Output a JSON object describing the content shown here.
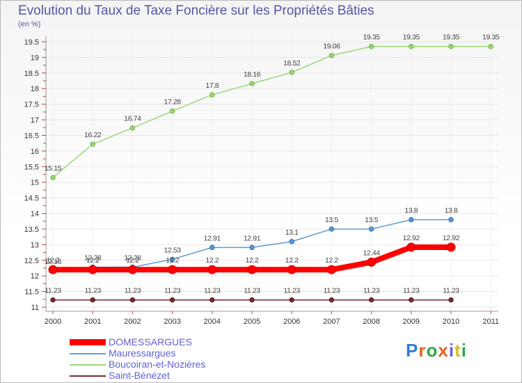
{
  "title": "Evolution du Taux de Taxe Foncière sur les Propriétés Bâties",
  "unit_label": "(en %)",
  "brand": {
    "letters": [
      "P",
      "r",
      "o",
      "x",
      "i",
      "t",
      "i"
    ],
    "colors": [
      "#2f7fd6",
      "#e8621e",
      "#2fa64a",
      "#e8621e",
      "#7a5bd0",
      "#c9c21e",
      "#2fa64a"
    ]
  },
  "chart_data": {
    "type": "line",
    "title": "Evolution du Taux de Taxe Foncière sur les Propriétés Bâties",
    "ylabel": "(en %)",
    "xlabel": "",
    "x_ticks": [
      "2000",
      "2001",
      "2002",
      "2003",
      "2004",
      "2005",
      "2006",
      "2007",
      "2008",
      "2009",
      "2010",
      "2011"
    ],
    "y_ticks": [
      "11",
      "11.5",
      "12",
      "12.5",
      "13",
      "13.5",
      "14",
      "14.5",
      "15",
      "15.5",
      "16",
      "16.5",
      "17",
      "17.5",
      "18",
      "18.5",
      "19",
      "19.5"
    ],
    "ylim": [
      11,
      19.5
    ],
    "series": [
      {
        "name": "DOMESSARGUES",
        "color": "#ff0000",
        "values": [
          12.2,
          12.2,
          12.2,
          12.2,
          12.2,
          12.2,
          12.2,
          12.2,
          12.44,
          12.92,
          12.92
        ],
        "labels": [
          "12.2",
          "",
          "",
          "12.2",
          "12.2",
          "12.2",
          "12.2",
          "12.2",
          "12.44",
          "12.92",
          "12.92"
        ]
      },
      {
        "name": "Mauressargues",
        "color": "#5b9bd5",
        "values": [
          12.16,
          12.28,
          12.28,
          12.53,
          12.91,
          12.91,
          13.1,
          13.5,
          13.5,
          13.8,
          13.8
        ],
        "labels": [
          "12.16",
          "12.28",
          "12.28",
          "12.53",
          "12.91",
          "12.91",
          "13.1",
          "13.5",
          "13.5",
          "13.8",
          "13.8"
        ]
      },
      {
        "name": "Boucoiran-et-Nozières",
        "color": "#9bd675",
        "values": [
          15.15,
          16.22,
          16.74,
          17.28,
          17.8,
          18.16,
          18.52,
          19.06,
          19.35,
          19.35,
          19.35,
          19.35
        ],
        "labels": [
          "15.15",
          "16.22",
          "16.74",
          "17.28",
          "17.8",
          "18.16",
          "18.52",
          "19.06",
          "19.35",
          "19.35",
          "19.35",
          "19.35"
        ]
      },
      {
        "name": "Saint-Bénézet",
        "color": "#7a2a2a",
        "values": [
          11.23,
          11.23,
          11.23,
          11.23,
          11.23,
          11.23,
          11.23,
          11.23,
          11.23,
          11.23,
          11.23
        ],
        "labels": [
          "11.23",
          "11.23",
          "11.23",
          "11.23",
          "11.23",
          "11.23",
          "11.23",
          "11.23",
          "11.23",
          "11.23",
          "11.23"
        ]
      }
    ],
    "extra_labels": [
      {
        "series": "DOMESSARGUES",
        "index": 1,
        "text": "12.2"
      },
      {
        "series": "DOMESSARGUES",
        "index": 2,
        "text": "12.2"
      }
    ],
    "legend": "bottom-left"
  }
}
